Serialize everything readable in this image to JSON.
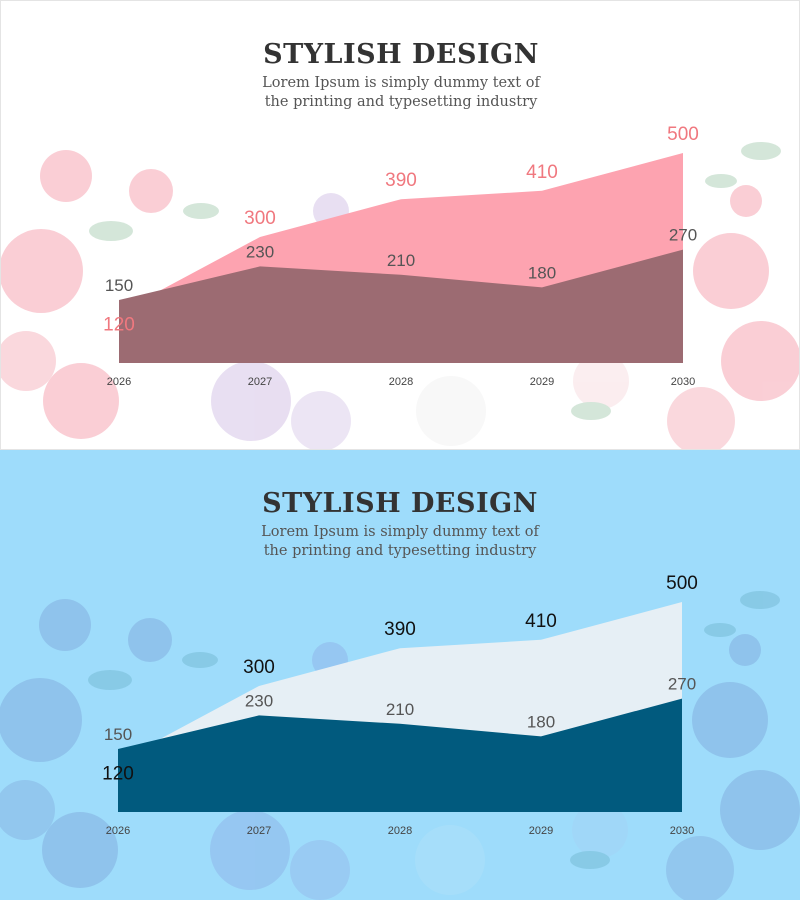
{
  "panels": [
    {
      "title": "STYLISH DESIGN",
      "subtitle": "Lorem Ipsum is simply dummy text of the printing and typesetting industry"
    },
    {
      "title": "STYLISH DESIGN",
      "subtitle": "Lorem Ipsum is simply dummy text of the printing and typesetting industry"
    }
  ],
  "colors": {
    "top": {
      "front": "#9c6b72",
      "back": "#fda3b0",
      "back_label": "#f0787f",
      "front_label": "#555555",
      "bg": "#ffffff"
    },
    "bottom": {
      "front": "#015a7e",
      "back": "#e6eff5",
      "back_label": "#111111",
      "front_label": "#555555",
      "bg": "#9edcfb"
    }
  },
  "chart_data": [
    {
      "type": "area",
      "categories": [
        "2026",
        "2027",
        "2028",
        "2029",
        "2030"
      ],
      "series": [
        {
          "values": [
            120,
            300,
            390,
            410,
            500
          ]
        },
        {
          "values": [
            150,
            230,
            210,
            180,
            270
          ]
        }
      ],
      "title": "STYLISH DESIGN",
      "subtitle": "Lorem Ipsum is simply dummy text of the printing and typesetting industry",
      "ylim": [
        0,
        600
      ],
      "grid": false,
      "data_labels": true
    },
    {
      "type": "area",
      "categories": [
        "2026",
        "2027",
        "2028",
        "2029",
        "2030"
      ],
      "series": [
        {
          "values": [
            120,
            300,
            390,
            410,
            500
          ]
        },
        {
          "values": [
            150,
            230,
            210,
            180,
            270
          ]
        }
      ],
      "title": "STYLISH DESIGN",
      "subtitle": "Lorem Ipsum is simply dummy text of the printing and typesetting industry",
      "ylim": [
        0,
        600
      ],
      "grid": false,
      "data_labels": true
    }
  ]
}
